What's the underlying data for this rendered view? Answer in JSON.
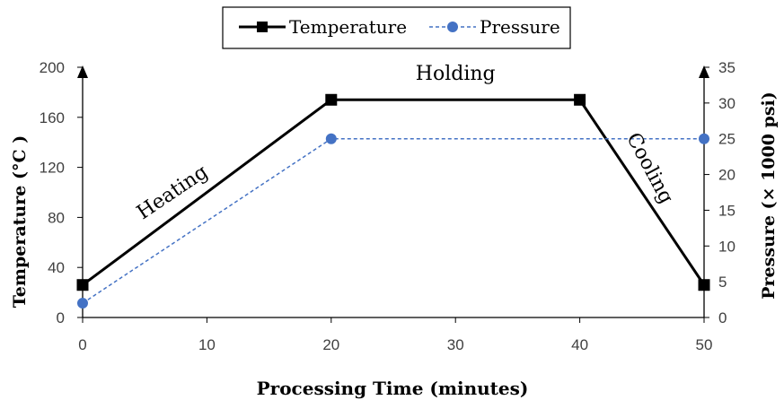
{
  "chart_data": {
    "type": "line",
    "xlabel": "Processing Time (minutes)",
    "ylabel_left": "Temperature (°C )",
    "ylabel_right": "Pressure (× 1000 psi)",
    "x_ticks": [
      "0",
      "10",
      "20",
      "30",
      "40",
      "50"
    ],
    "y_left_ticks": [
      "0",
      "40",
      "80",
      "120",
      "160",
      "200"
    ],
    "y_right_ticks": [
      "0",
      "5",
      "10",
      "15",
      "20",
      "25",
      "30",
      "35"
    ],
    "xlim": [
      0,
      50
    ],
    "ylim_left": [
      0,
      200
    ],
    "ylim_right": [
      0,
      35
    ],
    "grid": false,
    "legend_position": "top-center",
    "series": [
      {
        "name": "Temperature",
        "axis": "left",
        "color": "#000000",
        "marker": "square",
        "line_style": "solid",
        "x": [
          0,
          20,
          40,
          50
        ],
        "y": [
          26,
          174,
          174,
          26
        ]
      },
      {
        "name": "Pressure",
        "axis": "right",
        "color": "#4472c4",
        "marker": "circle",
        "line_style": "dashed",
        "x": [
          0,
          20,
          50
        ],
        "y": [
          2,
          25,
          25
        ]
      }
    ],
    "annotations": [
      {
        "text": "Heating",
        "x": 7.5,
        "y": 96,
        "axis": "left",
        "rotation": -34
      },
      {
        "text": "Holding",
        "x": 30,
        "y": 190,
        "axis": "left",
        "rotation": 0
      },
      {
        "text": "Cooling",
        "x": 45.2,
        "y": 117,
        "axis": "left",
        "rotation": 62
      }
    ]
  }
}
